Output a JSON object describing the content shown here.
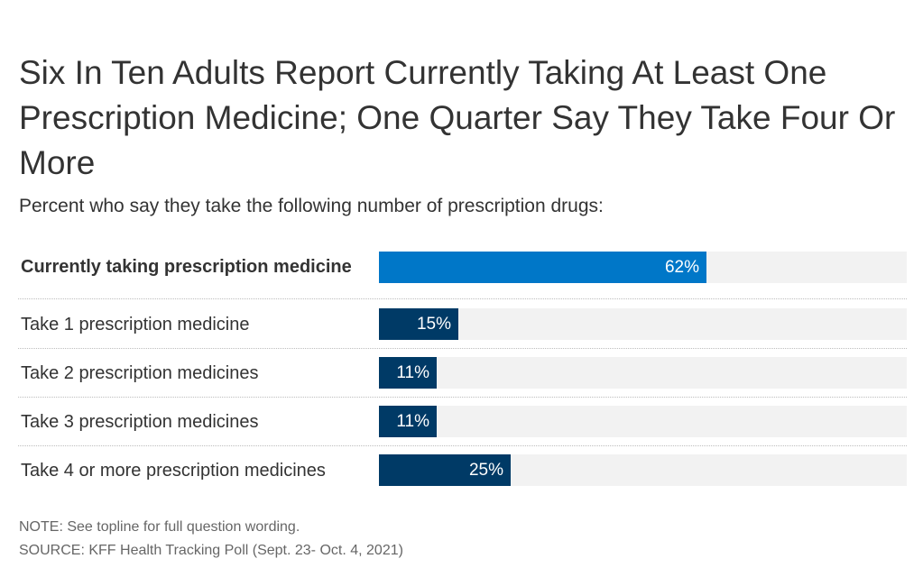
{
  "chart_data": {
    "type": "bar",
    "orientation": "horizontal",
    "title": "Six In Ten Adults Report Currently Taking At Least One Prescription Medicine; One Quarter Say They Take Four Or More",
    "subtitle": "Percent who say they take the following number of prescription drugs:",
    "categories": [
      "Currently taking prescription medicine",
      "Take 1 prescription medicine",
      "Take 2 prescription medicines",
      "Take 3 prescription medicines",
      "Take 4 or more prescription medicines"
    ],
    "values": [
      62,
      15,
      11,
      11,
      25
    ],
    "value_labels": [
      "62%",
      "15%",
      "11%",
      "11%",
      "25%"
    ],
    "bold_categories": [
      true,
      false,
      false,
      false,
      false
    ],
    "bar_colors": [
      "#0077c8",
      "#003a66",
      "#003a66",
      "#003a66",
      "#003a66"
    ],
    "track_color": "#f2f2f2",
    "xlim": [
      0,
      100
    ],
    "grid": false,
    "legend": "none"
  },
  "footer": {
    "note": "NOTE: See topline for full question wording.",
    "source": "SOURCE: KFF Health Tracking Poll (Sept. 23- Oct. 4, 2021)"
  }
}
